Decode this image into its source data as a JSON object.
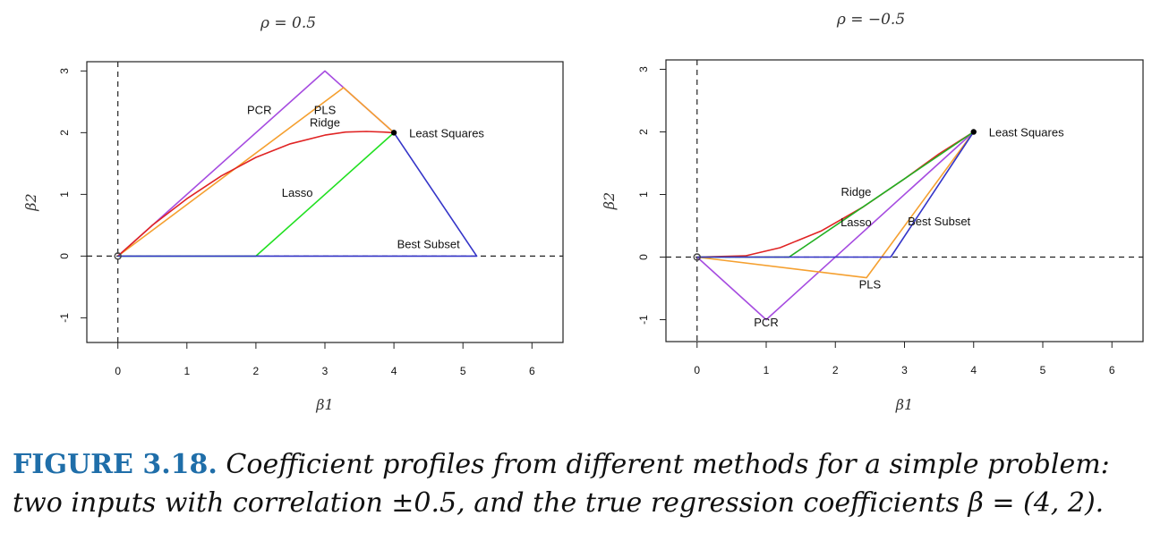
{
  "chart_data": [
    {
      "type": "line",
      "title": "ρ = 0.5",
      "xlabel": "β1",
      "ylabel": "β2",
      "xlim": [
        -0.45,
        6.45
      ],
      "ylim": [
        -1.4,
        3.15
      ],
      "xticks": [
        0,
        1,
        2,
        3,
        4,
        5,
        6
      ],
      "yticks": [
        -1,
        0,
        1,
        2,
        3
      ],
      "reference_lines": {
        "x": 0,
        "y": 0,
        "style": "dashed"
      },
      "point": {
        "label": "Least Squares",
        "x": 4,
        "y": 2
      },
      "series": [
        {
          "name": "PCR",
          "color": "#a64ce0",
          "x": [
            0,
            3,
            4
          ],
          "y": [
            0,
            3,
            2
          ]
        },
        {
          "name": "PLS",
          "color": "#f5a030",
          "x": [
            0,
            3.27,
            4
          ],
          "y": [
            0,
            2.73,
            2
          ]
        },
        {
          "name": "Ridge",
          "color": "#e02424",
          "x": [
            0,
            0.5,
            1,
            1.5,
            2,
            2.5,
            3,
            3.3,
            3.6,
            3.85,
            4
          ],
          "y": [
            0,
            0.5,
            0.93,
            1.3,
            1.6,
            1.82,
            1.96,
            2.01,
            2.02,
            2.01,
            2
          ]
        },
        {
          "name": "Lasso",
          "color": "#22e022",
          "x": [
            0,
            2,
            4
          ],
          "y": [
            0,
            0,
            2
          ]
        },
        {
          "name": "Best Subset",
          "color": "#3535c8",
          "x": [
            0,
            5.2,
            4
          ],
          "y": [
            0,
            0,
            2
          ]
        }
      ],
      "labels": [
        {
          "text": "PCR",
          "x": 2.05,
          "y": 2.3
        },
        {
          "text": "PLS",
          "x": 3.0,
          "y": 2.3
        },
        {
          "text": "Ridge",
          "x": 3.0,
          "y": 2.1
        },
        {
          "text": "Lasso",
          "x": 2.6,
          "y": 0.96
        },
        {
          "text": "Best Subset",
          "x": 4.5,
          "y": 0.13
        }
      ]
    },
    {
      "type": "line",
      "title": "ρ = −0.5",
      "xlabel": "β1",
      "ylabel": "β2",
      "xlim": [
        -0.45,
        6.45
      ],
      "ylim": [
        -1.35,
        3.15
      ],
      "xticks": [
        0,
        1,
        2,
        3,
        4,
        5,
        6
      ],
      "yticks": [
        -1,
        0,
        1,
        2,
        3
      ],
      "reference_lines": {
        "x": 0,
        "y": 0,
        "style": "dashed"
      },
      "point": {
        "label": "Least Squares",
        "x": 4,
        "y": 2
      },
      "series": [
        {
          "name": "PCR",
          "color": "#a64ce0",
          "x": [
            0,
            1,
            4
          ],
          "y": [
            0,
            -1,
            2
          ]
        },
        {
          "name": "PLS",
          "color": "#f5a030",
          "x": [
            0,
            2.45,
            4
          ],
          "y": [
            0,
            -0.33,
            2
          ]
        },
        {
          "name": "Ridge",
          "color": "#e02424",
          "x": [
            0,
            0.7,
            1.2,
            1.8,
            2.4,
            3.0,
            3.5,
            4
          ],
          "y": [
            0,
            0.02,
            0.15,
            0.42,
            0.8,
            1.25,
            1.65,
            2
          ]
        },
        {
          "name": "Lasso",
          "color": "#22b022",
          "x": [
            0,
            1.33,
            4
          ],
          "y": [
            0,
            0,
            2
          ]
        },
        {
          "name": "Best Subset",
          "color": "#3535c8",
          "x": [
            0,
            2.8,
            4
          ],
          "y": [
            0,
            0,
            2
          ]
        }
      ],
      "labels": [
        {
          "text": "Ridge",
          "x": 2.3,
          "y": 0.98
        },
        {
          "text": "Lasso",
          "x": 2.3,
          "y": 0.49
        },
        {
          "text": "Best Subset",
          "x": 3.5,
          "y": 0.51
        },
        {
          "text": "PLS",
          "x": 2.5,
          "y": -0.5
        },
        {
          "text": "PCR",
          "x": 1.0,
          "y": -1.11
        }
      ]
    }
  ],
  "caption": {
    "lead": "FIGURE 3.18.",
    "text": "Coefficient profiles from different methods for a simple problem: two inputs with correlation ±0.5, and the true regression coefficients β = (4, 2)."
  }
}
